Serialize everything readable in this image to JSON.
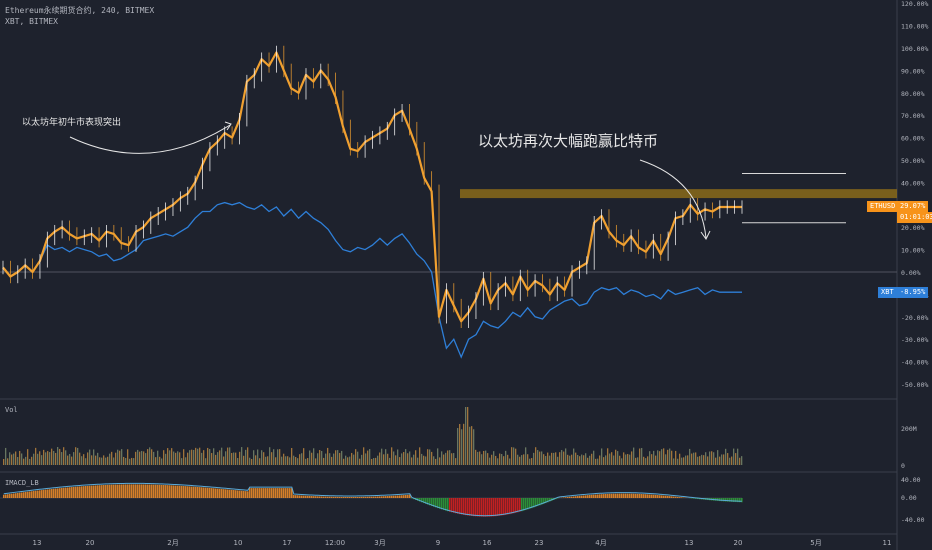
{
  "header": {
    "symbol_line": "Ethereum永续期货合约, 240, BITMEX",
    "compare_line": "XBT, BITMEX"
  },
  "annotations": {
    "left_note": "以太坊年初牛市表现突出",
    "right_note": "以太坊再次大幅跑赢比特币"
  },
  "badges": {
    "eth_label": "ETHUSD",
    "eth_value": "29.07%",
    "eth_countdown": "01:01:03",
    "xbt_label": "XBT",
    "xbt_value": "-8.95%"
  },
  "panes": {
    "volume_label": "Vol",
    "macd_label": "IMACD_LB"
  },
  "colors": {
    "background": "#1e222d",
    "eth_candles": "#f0a030",
    "eth_wick_up": "#ffffff",
    "xbt_line": "#2e7fd8",
    "resistance_band": "#8a6a1a",
    "eth_badge": "#f7931a",
    "xbt_badge": "#2e7fd8",
    "macd_pos": "#e8892a",
    "macd_neg": "#2e9a3a",
    "macd_red": "#d42020"
  },
  "chart_data": {
    "type": "line",
    "title": "",
    "x_ticks": [
      "13",
      "20",
      "2月",
      "10",
      "17",
      "12:00",
      "3月",
      "9",
      "16",
      "23",
      "4月",
      "13",
      "20",
      "5月",
      "11"
    ],
    "y_axis_main": {
      "unit": "%",
      "ticks": [
        "120.00%",
        "110.00%",
        "100.00%",
        "90.00%",
        "80.00%",
        "70.00%",
        "60.00%",
        "50.00%",
        "40.00%",
        "30.00%",
        "20.00%",
        "10.00%",
        "0.00%",
        "-10.00%",
        "-20.00%",
        "-30.00%",
        "-40.00%",
        "-50.00%"
      ],
      "range": [
        -52,
        120
      ]
    },
    "y_axis_volume": {
      "ticks": [
        "200M",
        "0"
      ]
    },
    "y_axis_macd": {
      "ticks": [
        "40.00",
        "0.00",
        "-40.00"
      ]
    },
    "series": [
      {
        "name": "ETHUSD",
        "style": "candles",
        "x": [
          0,
          1,
          2,
          3,
          4,
          5,
          6,
          7,
          8,
          9,
          10,
          11,
          12,
          13,
          14,
          15,
          16,
          17,
          18,
          19,
          20,
          21,
          22,
          23,
          24,
          25,
          26,
          27,
          28,
          29,
          30,
          31,
          32,
          33,
          34,
          35,
          36,
          37,
          38,
          39,
          40,
          41,
          42,
          43,
          44,
          45,
          46,
          47,
          48,
          49,
          50,
          51,
          52,
          53,
          54,
          55,
          56,
          57,
          58,
          59,
          60,
          61,
          62,
          63,
          64,
          65,
          66,
          67,
          68,
          69,
          70,
          71,
          72,
          73,
          74,
          75,
          76,
          77,
          78,
          79,
          80,
          81,
          82,
          83,
          84,
          85,
          86,
          87,
          88,
          89,
          90,
          91,
          92,
          93,
          94,
          95,
          96,
          97,
          98,
          99,
          100
        ],
        "values": [
          2,
          -2,
          0,
          3,
          0,
          5,
          15,
          18,
          20,
          17,
          15,
          16,
          17,
          14,
          18,
          17,
          13,
          12,
          18,
          20,
          24,
          26,
          28,
          30,
          33,
          35,
          40,
          48,
          55,
          58,
          62,
          60,
          68,
          85,
          88,
          95,
          92,
          98,
          90,
          82,
          80,
          88,
          85,
          90,
          86,
          78,
          65,
          55,
          54,
          58,
          60,
          62,
          64,
          70,
          72,
          64,
          55,
          42,
          36,
          -20,
          -8,
          -15,
          -22,
          -18,
          -12,
          -3,
          -14,
          -8,
          -5,
          -10,
          -2,
          -8,
          -4,
          -6,
          -10,
          -5,
          -8,
          0,
          2,
          4,
          22,
          25,
          18,
          14,
          12,
          16,
          11,
          9,
          14,
          8,
          15,
          24,
          25,
          30,
          26,
          28,
          27,
          29,
          29,
          29,
          29
        ]
      },
      {
        "name": "XBT",
        "style": "line",
        "x": [
          0,
          1,
          2,
          3,
          4,
          5,
          6,
          7,
          8,
          9,
          10,
          11,
          12,
          13,
          14,
          15,
          16,
          17,
          18,
          19,
          20,
          21,
          22,
          23,
          24,
          25,
          26,
          27,
          28,
          29,
          30,
          31,
          32,
          33,
          34,
          35,
          36,
          37,
          38,
          39,
          40,
          41,
          42,
          43,
          44,
          45,
          46,
          47,
          48,
          49,
          50,
          51,
          52,
          53,
          54,
          55,
          56,
          57,
          58,
          59,
          60,
          61,
          62,
          63,
          64,
          65,
          66,
          67,
          68,
          69,
          70,
          71,
          72,
          73,
          74,
          75,
          76,
          77,
          78,
          79,
          80,
          81,
          82,
          83,
          84,
          85,
          86,
          87,
          88,
          89,
          90,
          91,
          92,
          93,
          94,
          95,
          96,
          97,
          98,
          99,
          100
        ],
        "values": [
          2,
          -2,
          0,
          3,
          0,
          5,
          12,
          10,
          11,
          9,
          11,
          10,
          9,
          7,
          8,
          5,
          6,
          8,
          10,
          14,
          15,
          16,
          17,
          16,
          18,
          20,
          24,
          27,
          27,
          30,
          31,
          30,
          31,
          29,
          28,
          30,
          27,
          29,
          25,
          28,
          24,
          27,
          24,
          22,
          19,
          14,
          10,
          9,
          11,
          10,
          12,
          15,
          12,
          15,
          17,
          13,
          8,
          5,
          0,
          -20,
          -34,
          -30,
          -38,
          -30,
          -28,
          -22,
          -24,
          -25,
          -22,
          -18,
          -20,
          -16,
          -20,
          -21,
          -17,
          -15,
          -13,
          -12,
          -15,
          -14,
          -9,
          -7,
          -8,
          -7,
          -10,
          -8,
          -9,
          -11,
          -10,
          -12,
          -8,
          -10,
          -9,
          -8,
          -7,
          -10,
          -8,
          -9,
          -9,
          -9,
          -9
        ]
      }
    ],
    "resistance_band": [
      33,
      37
    ],
    "reference_lines": [
      44,
      22
    ]
  }
}
